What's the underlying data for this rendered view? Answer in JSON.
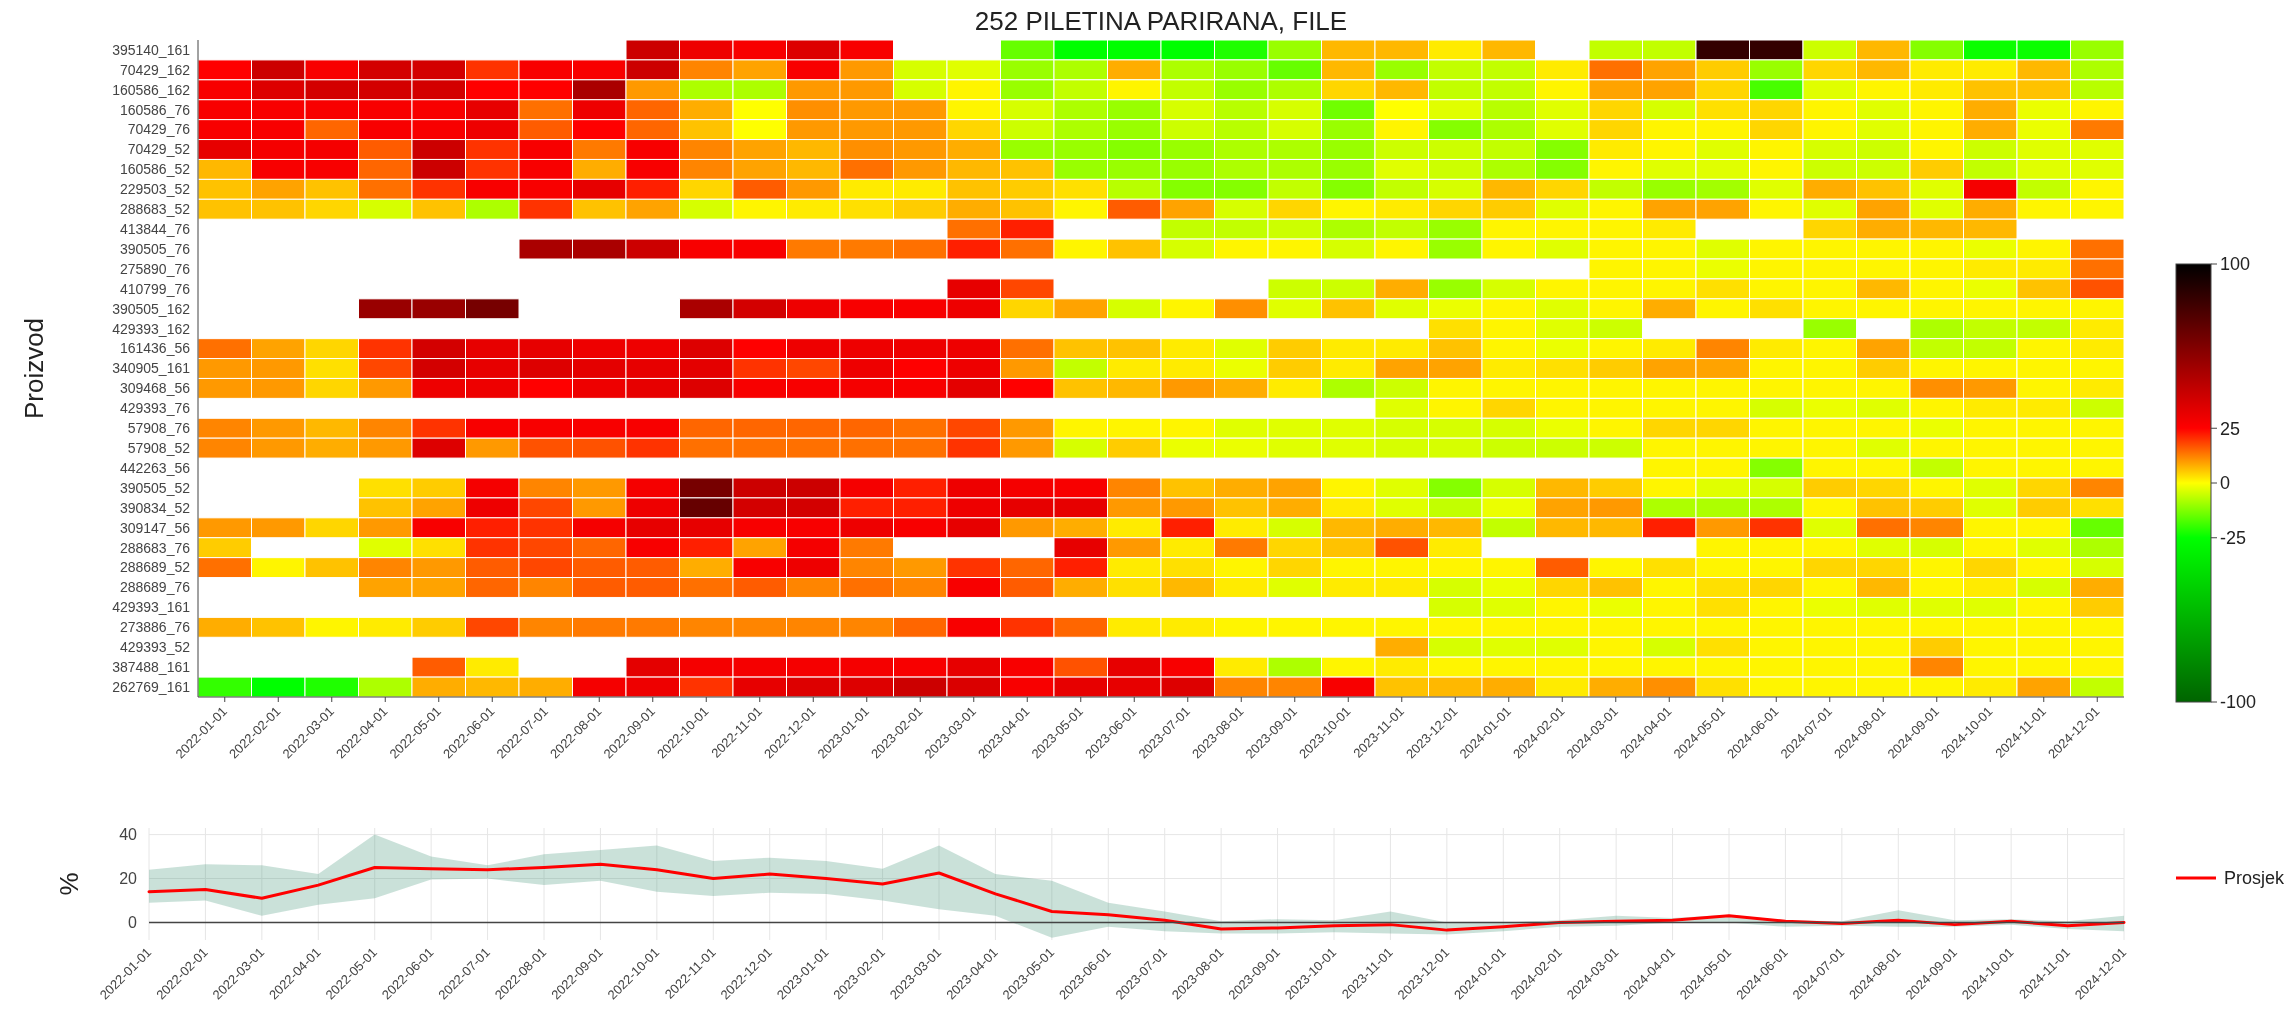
{
  "chart_data": [
    {
      "type": "heatmap",
      "title": "252 PILETINA PARIRANA, FILE",
      "ylabel": "Proizvod",
      "categories": [
        "2022-01-01",
        "2022-02-01",
        "2022-03-01",
        "2022-04-01",
        "2022-05-01",
        "2022-06-01",
        "2022-07-01",
        "2022-08-01",
        "2022-09-01",
        "2022-10-01",
        "2022-11-01",
        "2022-12-01",
        "2023-01-01",
        "2023-02-01",
        "2023-03-01",
        "2023-04-01",
        "2023-05-01",
        "2023-06-01",
        "2023-07-01",
        "2023-08-01",
        "2023-09-01",
        "2023-10-01",
        "2023-11-01",
        "2023-12-01",
        "2024-01-01",
        "2024-02-01",
        "2024-03-01",
        "2024-04-01",
        "2024-05-01",
        "2024-06-01",
        "2024-07-01",
        "2024-08-01",
        "2024-09-01",
        "2024-10-01",
        "2024-11-01",
        "2024-12-01"
      ],
      "y_categories": [
        "395140_161",
        "70429_162",
        "160586_162",
        "160586_76",
        "70429_76",
        "70429_52",
        "160586_52",
        "229503_52",
        "288683_52",
        "413844_76",
        "390505_76",
        "275890_76",
        "410799_76",
        "390505_162",
        "429393_162",
        "161436_56",
        "340905_161",
        "309468_56",
        "429393_76",
        "57908_76",
        "57908_52",
        "442263_56",
        "390505_52",
        "390834_52",
        "309147_56",
        "288683_76",
        "288689_52",
        "288689_76",
        "429393_161",
        "273886_76",
        "429393_52",
        "387488_161",
        "262769_161"
      ],
      "cells": [
        [
          null,
          null,
          null,
          null,
          null,
          null,
          null,
          null,
          40,
          30,
          27,
          35,
          27,
          null,
          null,
          -15,
          -25,
          -25,
          -25,
          -22,
          -10,
          7,
          7,
          2,
          7,
          null,
          -6,
          -6,
          85,
          85,
          -5,
          7,
          -12,
          -24,
          -24,
          -10
        ],
        [
          25,
          40,
          27,
          38,
          38,
          20,
          27,
          27,
          40,
          12,
          9,
          27,
          10,
          -4,
          -3,
          -10,
          -8,
          8,
          -8,
          -10,
          -15,
          7,
          -10,
          -6,
          -6,
          2,
          14,
          9,
          5,
          -10,
          4,
          7,
          2,
          2,
          7,
          -8
        ],
        [
          27,
          35,
          38,
          38,
          38,
          25,
          25,
          50,
          10,
          -8,
          -8,
          10,
          10,
          -4,
          1,
          -10,
          -6,
          1,
          -6,
          -10,
          -8,
          4,
          7,
          -6,
          -6,
          1,
          9,
          9,
          4,
          -18,
          -3,
          1,
          2,
          6,
          6,
          -7
        ],
        [
          27,
          27,
          27,
          27,
          27,
          32,
          14,
          30,
          15,
          8,
          0,
          11,
          10,
          10,
          1,
          -4,
          -8,
          -10,
          -4,
          -7,
          -4,
          -14,
          0,
          -3,
          -7,
          -3,
          4,
          -4,
          3,
          4,
          1,
          -3,
          1,
          8,
          -2,
          1
        ],
        [
          27,
          27,
          15,
          27,
          27,
          30,
          16,
          25,
          15,
          6,
          0,
          10,
          10,
          10,
          4,
          -5,
          -8,
          -10,
          -5,
          -7,
          -4,
          -10,
          1,
          -12,
          -8,
          -3,
          4,
          1,
          1,
          4,
          1,
          -3,
          1,
          8,
          -2,
          13
        ],
        [
          32,
          28,
          28,
          16,
          40,
          20,
          27,
          13,
          27,
          12,
          9,
          7,
          11,
          10,
          8,
          -10,
          -10,
          -12,
          -10,
          -8,
          -8,
          -10,
          -5,
          -5,
          -6,
          -12,
          2,
          1,
          -3,
          1,
          -4,
          -5,
          1,
          -5,
          -3,
          -3
        ],
        [
          7,
          27,
          27,
          15,
          40,
          20,
          27,
          8,
          27,
          12,
          9,
          7,
          14,
          10,
          7,
          6,
          -10,
          -10,
          -10,
          -8,
          -8,
          -10,
          -3,
          -5,
          -8,
          -12,
          1,
          -3,
          -3,
          1,
          -5,
          -5,
          5,
          -6,
          -3,
          -3
        ],
        [
          6,
          9,
          6,
          14,
          20,
          27,
          27,
          32,
          22,
          4,
          16,
          10,
          2,
          2,
          6,
          5,
          3,
          -7,
          -12,
          -12,
          -6,
          -12,
          -6,
          -4,
          7,
          4,
          -6,
          -10,
          -9,
          -3,
          8,
          6,
          -3,
          28,
          -6,
          1
        ],
        [
          6,
          6,
          4,
          -4,
          6,
          -8,
          20,
          6,
          9,
          -4,
          1,
          2,
          3,
          5,
          8,
          6,
          1,
          16,
          9,
          -4,
          4,
          1,
          2,
          4,
          5,
          -3,
          1,
          9,
          9,
          1,
          -3,
          9,
          -3,
          8,
          1,
          1
        ],
        [
          null,
          null,
          null,
          null,
          null,
          null,
          null,
          null,
          null,
          null,
          null,
          null,
          null,
          null,
          14,
          22,
          null,
          null,
          -6,
          -6,
          -5,
          -8,
          -6,
          -10,
          1,
          1,
          1,
          2,
          null,
          null,
          4,
          8,
          7,
          7,
          null,
          null
        ],
        [
          null,
          null,
          null,
          null,
          null,
          null,
          50,
          50,
          40,
          27,
          27,
          13,
          13,
          14,
          22,
          14,
          1,
          6,
          -4,
          1,
          1,
          -4,
          1,
          -10,
          1,
          -3,
          1,
          1,
          -3,
          1,
          1,
          1,
          1,
          -2,
          1,
          14
        ],
        [
          null,
          null,
          null,
          null,
          null,
          null,
          null,
          null,
          null,
          null,
          null,
          null,
          null,
          null,
          null,
          null,
          null,
          null,
          null,
          null,
          null,
          null,
          null,
          null,
          null,
          null,
          1,
          1,
          -2,
          1,
          1,
          1,
          1,
          2,
          2,
          14
        ],
        [
          null,
          null,
          null,
          null,
          null,
          null,
          null,
          null,
          null,
          null,
          null,
          null,
          null,
          null,
          32,
          18,
          null,
          null,
          null,
          null,
          -5,
          -5,
          8,
          -10,
          -4,
          1,
          1,
          1,
          3,
          1,
          1,
          7,
          1,
          -2,
          6,
          17
        ],
        [
          null,
          null,
          null,
          55,
          55,
          65,
          null,
          null,
          null,
          50,
          38,
          30,
          27,
          27,
          30,
          4,
          9,
          -4,
          1,
          11,
          -3,
          6,
          -3,
          -2,
          1,
          -3,
          1,
          8,
          1,
          3,
          1,
          1,
          1,
          1,
          1,
          1
        ],
        [
          null,
          null,
          null,
          null,
          null,
          null,
          null,
          null,
          null,
          null,
          null,
          null,
          null,
          null,
          null,
          null,
          null,
          null,
          null,
          null,
          null,
          null,
          null,
          3,
          1,
          -3,
          -5,
          null,
          null,
          null,
          -10,
          null,
          -8,
          -6,
          -6,
          2
        ],
        [
          14,
          9,
          4,
          20,
          38,
          32,
          32,
          30,
          30,
          35,
          25,
          30,
          30,
          30,
          30,
          14,
          6,
          6,
          2,
          -3,
          5,
          2,
          2,
          6,
          1,
          -2,
          1,
          2,
          12,
          2,
          1,
          9,
          -6,
          -6,
          1,
          2
        ],
        [
          10,
          10,
          3,
          18,
          38,
          32,
          35,
          33,
          32,
          33,
          20,
          18,
          30,
          25,
          30,
          10,
          -6,
          2,
          2,
          -2,
          5,
          2,
          9,
          9,
          2,
          3,
          5,
          9,
          9,
          1,
          1,
          5,
          1,
          1,
          1,
          1
        ],
        [
          10,
          10,
          4,
          10,
          30,
          30,
          25,
          30,
          32,
          35,
          27,
          27,
          28,
          27,
          33,
          25,
          6,
          7,
          10,
          8,
          2,
          -8,
          -5,
          1,
          1,
          1,
          1,
          1,
          1,
          1,
          1,
          1,
          11,
          10,
          1,
          2
        ],
        [
          null,
          null,
          null,
          null,
          null,
          null,
          null,
          null,
          null,
          null,
          null,
          null,
          null,
          null,
          null,
          null,
          null,
          null,
          null,
          null,
          null,
          null,
          -3,
          1,
          4,
          1,
          1,
          1,
          1,
          -4,
          -2,
          -3,
          1,
          2,
          2,
          -5
        ],
        [
          12,
          10,
          7,
          12,
          20,
          27,
          27,
          27,
          27,
          15,
          15,
          15,
          15,
          14,
          18,
          10,
          1,
          1,
          1,
          -3,
          -3,
          -3,
          -4,
          -4,
          -4,
          -2,
          1,
          4,
          4,
          1,
          1,
          1,
          -2,
          1,
          1,
          1
        ],
        [
          12,
          10,
          8,
          10,
          35,
          10,
          17,
          17,
          20,
          14,
          14,
          14,
          14,
          14,
          20,
          10,
          -4,
          5,
          -2,
          -2,
          -3,
          -3,
          -4,
          -4,
          -5,
          -5,
          -5,
          1,
          1,
          1,
          1,
          -3,
          1,
          1,
          1,
          1
        ],
        [
          null,
          null,
          null,
          null,
          null,
          null,
          null,
          null,
          null,
          null,
          null,
          null,
          null,
          null,
          null,
          null,
          null,
          null,
          null,
          null,
          null,
          null,
          null,
          null,
          null,
          null,
          null,
          1,
          1,
          -12,
          1,
          1,
          -6,
          1,
          1,
          1
        ],
        [
          null,
          null,
          null,
          3,
          5,
          28,
          12,
          10,
          28,
          65,
          40,
          40,
          28,
          22,
          30,
          28,
          27,
          12,
          6,
          8,
          9,
          1,
          -3,
          -12,
          -4,
          7,
          5,
          1,
          -3,
          -4,
          5,
          4,
          1,
          -3,
          4,
          12
        ],
        [
          null,
          null,
          null,
          6,
          9,
          30,
          18,
          10,
          30,
          70,
          38,
          38,
          22,
          22,
          30,
          32,
          32,
          10,
          10,
          6,
          8,
          2,
          -3,
          -6,
          -2,
          9,
          10,
          -8,
          -8,
          -8,
          1,
          6,
          5,
          -3,
          5,
          3
        ],
        [
          10,
          10,
          4,
          10,
          27,
          22,
          20,
          28,
          32,
          32,
          27,
          27,
          30,
          27,
          32,
          10,
          8,
          2,
          22,
          2,
          -4,
          7,
          8,
          7,
          -6,
          7,
          7,
          22,
          10,
          20,
          -3,
          14,
          12,
          1,
          1,
          -15
        ],
        [
          5,
          null,
          null,
          -3,
          3,
          20,
          18,
          15,
          27,
          22,
          9,
          28,
          13,
          null,
          null,
          null,
          32,
          10,
          2,
          13,
          4,
          6,
          17,
          2,
          null,
          null,
          null,
          null,
          1,
          1,
          1,
          -3,
          -4,
          1,
          -3,
          -8
        ],
        [
          14,
          1,
          6,
          12,
          10,
          16,
          18,
          16,
          16,
          8,
          27,
          30,
          12,
          10,
          20,
          15,
          22,
          2,
          3,
          1,
          4,
          1,
          1,
          1,
          1,
          16,
          1,
          3,
          1,
          1,
          4,
          4,
          1,
          4,
          1,
          -4
        ],
        [
          null,
          null,
          null,
          9,
          9,
          15,
          12,
          16,
          16,
          14,
          16,
          12,
          14,
          12,
          27,
          16,
          8,
          3,
          7,
          2,
          -3,
          2,
          2,
          -4,
          -2,
          4,
          6,
          1,
          3,
          4,
          1,
          7,
          1,
          2,
          -4,
          8
        ],
        [
          null,
          null,
          null,
          null,
          null,
          null,
          null,
          null,
          null,
          null,
          null,
          null,
          null,
          null,
          null,
          null,
          null,
          null,
          null,
          null,
          null,
          null,
          null,
          -4,
          -3,
          1,
          -2,
          1,
          3,
          1,
          -2,
          -3,
          -3,
          -3,
          1,
          5
        ],
        [
          8,
          6,
          1,
          2,
          5,
          18,
          12,
          13,
          13,
          12,
          12,
          12,
          12,
          15,
          27,
          20,
          15,
          2,
          2,
          1,
          1,
          1,
          1,
          1,
          1,
          1,
          1,
          1,
          1,
          1,
          1,
          1,
          1,
          1,
          1,
          1
        ],
        [
          null,
          null,
          null,
          null,
          null,
          null,
          null,
          null,
          null,
          null,
          null,
          null,
          null,
          null,
          null,
          null,
          null,
          null,
          null,
          null,
          null,
          null,
          8,
          -4,
          -3,
          -3,
          1,
          -4,
          3,
          1,
          1,
          1,
          5,
          1,
          1,
          1
        ],
        [
          null,
          null,
          null,
          null,
          16,
          2,
          null,
          null,
          33,
          28,
          28,
          28,
          28,
          27,
          32,
          27,
          17,
          32,
          27,
          2,
          -8,
          1,
          2,
          1,
          1,
          1,
          1,
          1,
          1,
          1,
          1,
          1,
          12,
          1,
          1,
          1
        ],
        [
          -20,
          -25,
          -22,
          -8,
          8,
          7,
          8,
          28,
          30,
          20,
          32,
          35,
          35,
          40,
          36,
          27,
          32,
          32,
          35,
          12,
          12,
          27,
          6,
          7,
          8,
          2,
          8,
          11,
          3,
          1,
          1,
          1,
          1,
          2,
          9,
          -6
        ]
      ],
      "clim": [
        -100,
        100
      ],
      "cticks": [
        -100,
        -25,
        0,
        25,
        100
      ]
    },
    {
      "type": "line",
      "ylabel": "%",
      "legend": "right",
      "grid": true,
      "categories": [
        "2022-01-01",
        "2022-02-01",
        "2022-03-01",
        "2022-04-01",
        "2022-05-01",
        "2022-06-01",
        "2022-07-01",
        "2022-08-01",
        "2022-09-01",
        "2022-10-01",
        "2022-11-01",
        "2022-12-01",
        "2023-01-01",
        "2023-02-01",
        "2023-03-01",
        "2023-04-01",
        "2023-05-01",
        "2023-06-01",
        "2023-07-01",
        "2023-08-01",
        "2023-09-01",
        "2023-10-01",
        "2023-11-01",
        "2023-12-01",
        "2024-01-01",
        "2024-02-01",
        "2024-03-01",
        "2024-04-01",
        "2024-05-01",
        "2024-06-01",
        "2024-07-01",
        "2024-08-01",
        "2024-09-01",
        "2024-10-01",
        "2024-11-01",
        "2024-12-01"
      ],
      "series": [
        {
          "name": "Prosjek",
          "type": "line",
          "color": "#ff0000",
          "values": [
            14,
            15,
            11,
            17,
            25,
            24.5,
            24,
            25,
            26.5,
            24,
            20,
            22,
            20,
            17.5,
            22.5,
            13,
            5,
            3.5,
            1,
            -3,
            -2.5,
            -1.5,
            -1,
            -3.5,
            -2,
            0,
            0.5,
            1,
            3,
            0.5,
            -0.5,
            1,
            -1,
            0.5,
            -1.5,
            0
          ],
          "lower": [
            9,
            10,
            3,
            8,
            11,
            19.5,
            20,
            17,
            19,
            14,
            12,
            13.5,
            13,
            10,
            6,
            3,
            -7,
            -2,
            -4,
            -5,
            -5,
            -4.5,
            -5,
            -5.5,
            -4,
            -2,
            -1.5,
            0,
            0,
            -2,
            -1.5,
            -2,
            -2,
            -1,
            -3,
            -4
          ],
          "upper": [
            24,
            26.5,
            26,
            22,
            40,
            30,
            26,
            31,
            33,
            35,
            28,
            29.5,
            28,
            24.5,
            35,
            22,
            19,
            9,
            5,
            0.5,
            1.5,
            1,
            5,
            0,
            0,
            1,
            3,
            2,
            3.5,
            1,
            0.5,
            5.5,
            1,
            1.5,
            0.5,
            3
          ]
        }
      ],
      "ylim": [
        -8,
        43
      ],
      "yticks": [
        0,
        20,
        40
      ]
    }
  ]
}
